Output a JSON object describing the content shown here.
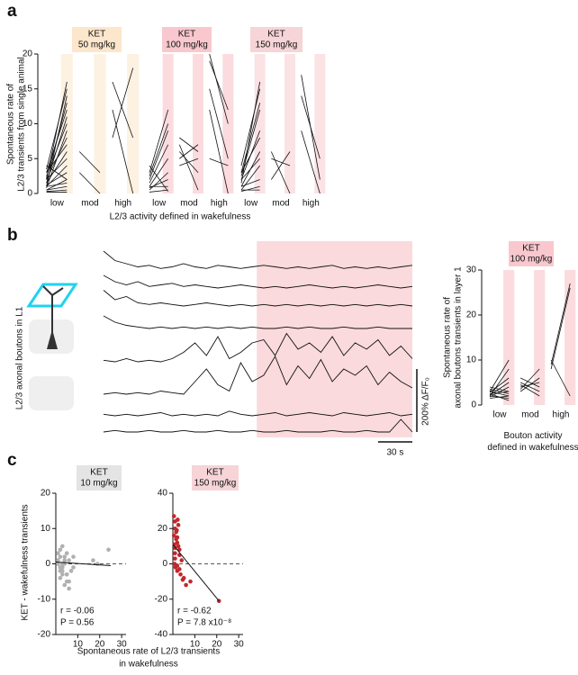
{
  "chart_data": [
    {
      "type": "paired",
      "panel_label": "a",
      "badge": [
        "KET",
        "50 mg/kg"
      ],
      "badge_color": "#fce6cc",
      "shade_color": "#fdf1e2",
      "ylim": [
        0,
        20
      ],
      "yticks": [
        0,
        5,
        10,
        15,
        20
      ],
      "y_label": [
        "Spontaneous rate of",
        "L2/3 transients from single animal"
      ],
      "x_label": "L2/3 activity defined in wakefulness",
      "categories": [
        "low",
        "mod",
        "high"
      ],
      "pairs": [
        [
          [
            0.5,
            2
          ],
          [
            1,
            4
          ],
          [
            1.5,
            6
          ],
          [
            2,
            8
          ],
          [
            2.5,
            10
          ],
          [
            3,
            12
          ],
          [
            1,
            14
          ],
          [
            2,
            16
          ],
          [
            0.3,
            0.5
          ],
          [
            0.5,
            1
          ],
          [
            1,
            1.5
          ],
          [
            1.2,
            3
          ],
          [
            2,
            5
          ],
          [
            3,
            7
          ],
          [
            0.8,
            9
          ],
          [
            1.5,
            11
          ],
          [
            2.2,
            13
          ],
          [
            3.5,
            15
          ],
          [
            0.2,
            0.2
          ],
          [
            4,
            2
          ]
        ],
        [
          [
            6,
            3
          ],
          [
            3,
            0
          ]
        ],
        [
          [
            16,
            8
          ],
          [
            8,
            18
          ],
          [
            12,
            0
          ]
        ]
      ]
    },
    {
      "type": "paired",
      "badge": [
        "KET",
        "100 mg/kg"
      ],
      "badge_color": "#f8c8ce",
      "shade_color": "#fbdbde",
      "ylim": [
        0,
        20
      ],
      "categories": [
        "low",
        "mod",
        "high"
      ],
      "pairs": [
        [
          [
            0.5,
            3
          ],
          [
            1,
            5
          ],
          [
            2,
            9
          ],
          [
            3,
            12
          ],
          [
            1,
            1
          ],
          [
            0.2,
            0.5
          ],
          [
            1.5,
            7
          ],
          [
            2.5,
            10
          ],
          [
            0.8,
            2
          ],
          [
            4,
            0.3
          ]
        ],
        [
          [
            5,
            7
          ],
          [
            6,
            3
          ],
          [
            7,
            0.5
          ],
          [
            4,
            5
          ],
          [
            8,
            6
          ]
        ],
        [
          [
            20,
            10
          ],
          [
            19,
            12
          ],
          [
            15,
            5
          ],
          [
            5,
            4
          ],
          [
            12,
            0
          ]
        ]
      ]
    },
    {
      "type": "paired",
      "badge": [
        "KET",
        "150 mg/kg"
      ],
      "badge_color": "#f6d4d7",
      "shade_color": "#fbe2e4",
      "ylim": [
        0,
        20
      ],
      "categories": [
        "low",
        "mod",
        "high"
      ],
      "pairs": [
        [
          [
            0.5,
            4
          ],
          [
            1,
            6
          ],
          [
            2,
            9
          ],
          [
            3,
            13
          ],
          [
            1.5,
            16
          ],
          [
            2.5,
            12
          ],
          [
            0.3,
            1
          ],
          [
            1,
            2
          ],
          [
            2,
            5
          ],
          [
            3,
            8
          ],
          [
            0.5,
            0.5
          ],
          [
            4,
            15
          ]
        ],
        [
          [
            2,
            6
          ],
          [
            6,
            0
          ],
          [
            5,
            4
          ]
        ],
        [
          [
            17,
            2
          ],
          [
            9,
            0
          ],
          [
            14,
            5
          ]
        ]
      ]
    },
    {
      "type": "traces",
      "panel_label": "b",
      "y_label": "L2/3 axonal boutons in L1",
      "shade": [
        134,
        270
      ],
      "shade_color": "#fadadd",
      "x": [
        0,
        10,
        20,
        30,
        40,
        50,
        60,
        70,
        80,
        90,
        100,
        110,
        120,
        130,
        140,
        150,
        160,
        170,
        180,
        190,
        200,
        210,
        220,
        230,
        240,
        250,
        260,
        270
      ],
      "traces": [
        [
          60,
          30,
          20,
          10,
          15,
          5,
          10,
          20,
          10,
          5,
          15,
          10,
          5,
          10,
          15,
          10,
          5,
          10,
          5,
          10,
          15,
          5,
          10,
          5,
          10,
          5,
          10,
          15
        ],
        [
          40,
          20,
          10,
          20,
          5,
          10,
          15,
          5,
          10,
          5,
          0,
          5,
          10,
          5,
          0,
          5,
          0,
          5,
          10,
          5,
          0,
          5,
          0,
          5,
          10,
          5,
          0,
          5
        ],
        [
          50,
          20,
          30,
          10,
          5,
          10,
          5,
          0,
          5,
          10,
          5,
          0,
          5,
          0,
          5,
          0,
          5,
          0,
          5,
          0,
          5,
          0,
          5,
          0,
          5,
          0,
          5,
          0
        ],
        [
          40,
          20,
          10,
          5,
          0,
          5,
          0,
          5,
          0,
          5,
          0,
          5,
          0,
          5,
          0,
          0,
          5,
          0,
          5,
          0,
          0,
          5,
          0,
          0,
          5,
          0,
          0,
          0
        ],
        [
          5,
          0,
          10,
          0,
          5,
          0,
          10,
          30,
          60,
          20,
          80,
          10,
          30,
          60,
          70,
          20,
          90,
          40,
          60,
          30,
          80,
          20,
          60,
          40,
          70,
          20,
          50,
          10
        ],
        [
          0,
          5,
          0,
          5,
          0,
          10,
          5,
          0,
          40,
          80,
          30,
          10,
          100,
          40,
          60,
          120,
          30,
          90,
          50,
          110,
          40,
          80,
          60,
          90,
          30,
          70,
          40,
          20
        ],
        [
          5,
          0,
          5,
          0,
          5,
          10,
          0,
          5,
          0,
          5,
          0,
          15,
          5,
          0,
          5,
          10,
          0,
          5,
          10,
          5,
          0,
          10,
          5,
          0,
          5,
          10,
          0,
          5
        ],
        [
          0,
          5,
          0,
          0,
          5,
          0,
          0,
          5,
          0,
          0,
          5,
          0,
          0,
          5,
          0,
          0,
          5,
          0,
          0,
          0,
          5,
          0,
          0,
          5,
          0,
          0,
          40,
          0
        ]
      ],
      "scale_y": {
        "value": 200,
        "label": "200% ΔF/F₀"
      },
      "scale_x": {
        "value": 30,
        "label": "30 s"
      }
    },
    {
      "type": "paired",
      "badge": [
        "KET",
        "100 mg/kg"
      ],
      "badge_color": "#f8c8ce",
      "shade_color": "#fbdbde",
      "ylim": [
        0,
        30
      ],
      "yticks": [
        0,
        10,
        20,
        30
      ],
      "y_label": [
        "Spontaneous rate of",
        "axonal boutons transients in layer 1"
      ],
      "x_label": [
        "Bouton activity",
        "defined in wakefulness"
      ],
      "categories": [
        "low",
        "mod",
        "high"
      ],
      "pairs": [
        [
          [
            2,
            1.5
          ],
          [
            2.5,
            3
          ],
          [
            3,
            2
          ],
          [
            1.8,
            4
          ],
          [
            2.2,
            5
          ],
          [
            3.5,
            2.5
          ],
          [
            2.8,
            6
          ],
          [
            2,
            8
          ],
          [
            3,
            10
          ],
          [
            1.5,
            2
          ],
          [
            4,
            3
          ],
          [
            2.5,
            1
          ]
        ],
        [
          [
            4,
            5
          ],
          [
            5,
            3
          ],
          [
            3,
            6
          ],
          [
            6,
            4
          ],
          [
            4.5,
            2
          ],
          [
            3.5,
            8
          ]
        ],
        [
          [
            8,
            26
          ],
          [
            9,
            27
          ],
          [
            10,
            2
          ]
        ]
      ]
    },
    {
      "type": "scatter",
      "panel_label": "c",
      "badge": [
        "KET",
        "10 mg/kg"
      ],
      "badge_color": "#e4e4e4",
      "color": "#b0b0b0",
      "xlim": [
        0,
        32
      ],
      "ylim": [
        -20,
        20
      ],
      "xticks": [
        10,
        20,
        30
      ],
      "yticks": [
        -20,
        -10,
        0,
        10,
        20
      ],
      "y_label": "KET - wakefulness transients",
      "x_label": [
        "Spontaneous rate of L2/3 transients",
        "in wakefulness"
      ],
      "x": [
        1,
        2,
        3,
        4,
        5,
        6,
        2,
        3,
        4,
        5,
        7,
        8,
        1,
        2,
        3,
        6,
        4,
        5,
        3,
        2,
        17,
        19,
        24,
        1,
        2,
        6,
        5,
        3,
        4,
        8
      ],
      "y": [
        0,
        2,
        -2,
        1,
        -3,
        -5,
        4,
        -1,
        -6,
        3,
        -2,
        2,
        1,
        -4,
        0,
        -7,
        2,
        -3,
        5,
        -1,
        1,
        0,
        4,
        3,
        -2,
        1,
        -5,
        -3,
        0,
        -1
      ],
      "fit": {
        "x": [
          0,
          25
        ],
        "y": [
          0.5,
          -0.5
        ]
      },
      "annotations": [
        "r = -0.06",
        "P = 0.56"
      ]
    },
    {
      "type": "scatter",
      "badge": [
        "KET",
        "150 mg/kg"
      ],
      "badge_color": "#f6d4d7",
      "color": "#c0282d",
      "xlim": [
        0,
        32
      ],
      "ylim": [
        -40,
        40
      ],
      "xticks": [
        10,
        20,
        30
      ],
      "yticks": [
        -40,
        -20,
        0,
        20,
        40
      ],
      "x": [
        0.5,
        1,
        1,
        1.5,
        2,
        2,
        2.5,
        3,
        3,
        1,
        0.8,
        1.2,
        2,
        3.5,
        4,
        5,
        1.5,
        2.5,
        0.5,
        1,
        3,
        6,
        8,
        21,
        1,
        2,
        0.7,
        1.8,
        2.2,
        4.5
      ],
      "y": [
        27,
        24,
        20,
        18,
        15,
        12,
        10,
        8,
        5,
        3,
        0,
        -2,
        -4,
        -6,
        2,
        -8,
        14,
        22,
        16,
        9,
        -3,
        -12,
        -10,
        -21,
        6,
        -1,
        11,
        19,
        25,
        -9
      ],
      "fit": {
        "x": [
          0,
          21
        ],
        "y": [
          11,
          -21
        ]
      },
      "annotations": [
        "r = -0.62",
        "P = 7.8 x10⁻⁸"
      ]
    }
  ]
}
